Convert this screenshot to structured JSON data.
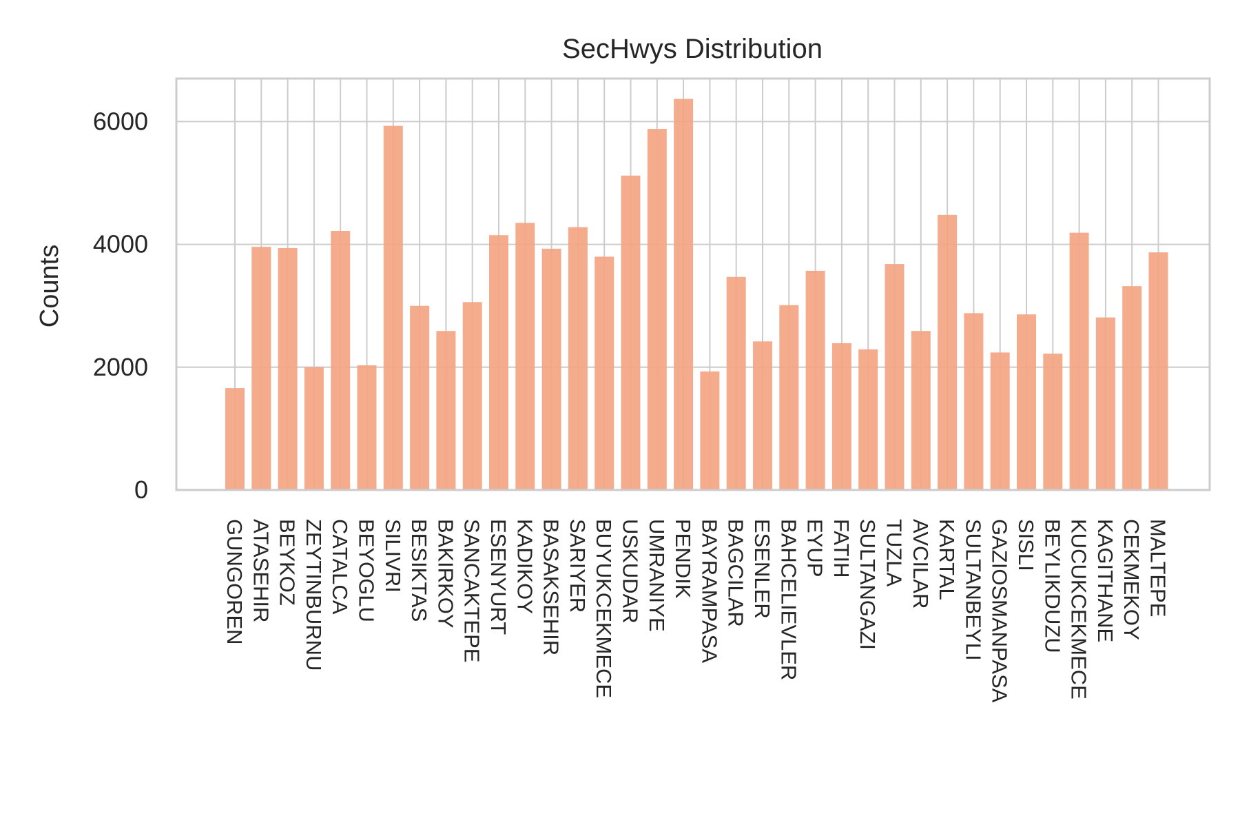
{
  "chart_data": {
    "type": "bar",
    "title": "SecHwys Distribution",
    "xlabel": "",
    "ylabel": "Counts",
    "ylim": [
      0,
      6700
    ],
    "yticks": [
      0,
      2000,
      4000,
      6000
    ],
    "grid": true,
    "bar_color": "#f4a582",
    "grid_color": "#cccccc",
    "categories": [
      "GUNGOREN",
      "ATASEHIR",
      "BEYKOZ",
      "ZEYTINBURNU",
      "CATALCA",
      "BEYOGLU",
      "SILIVRI",
      "BESIKTAS",
      "BAKIRKOY",
      "SANCAKTEPE",
      "ESENYURT",
      "KADIKOY",
      "BASAKSEHIR",
      "SARIYER",
      "BUYUKCEKMECE",
      "USKUDAR",
      "UMRANIYE",
      "PENDIK",
      "BAYRAMPASA",
      "BAGCILAR",
      "ESENLER",
      "BAHCELIEVLER",
      "EYUP",
      "FATIH",
      "SULTANGAZI",
      "TUZLA",
      "AVCILAR",
      "KARTAL",
      "SULTANBEYLI",
      "GAZIOSMANPASA",
      "SISLI",
      "BEYLIKDUZU",
      "KUCUKCEKMECE",
      "KAGITHANE",
      "CEKMEKOY",
      "MALTEPE"
    ],
    "values": [
      1660,
      3960,
      3940,
      2000,
      4220,
      2030,
      5930,
      3000,
      2590,
      3060,
      4150,
      4350,
      3930,
      4280,
      3800,
      5120,
      5880,
      6370,
      1930,
      3470,
      2420,
      3010,
      3570,
      2390,
      2290,
      3680,
      2590,
      4480,
      2880,
      2240,
      2860,
      2220,
      4190,
      2810,
      3320,
      3870
    ]
  }
}
